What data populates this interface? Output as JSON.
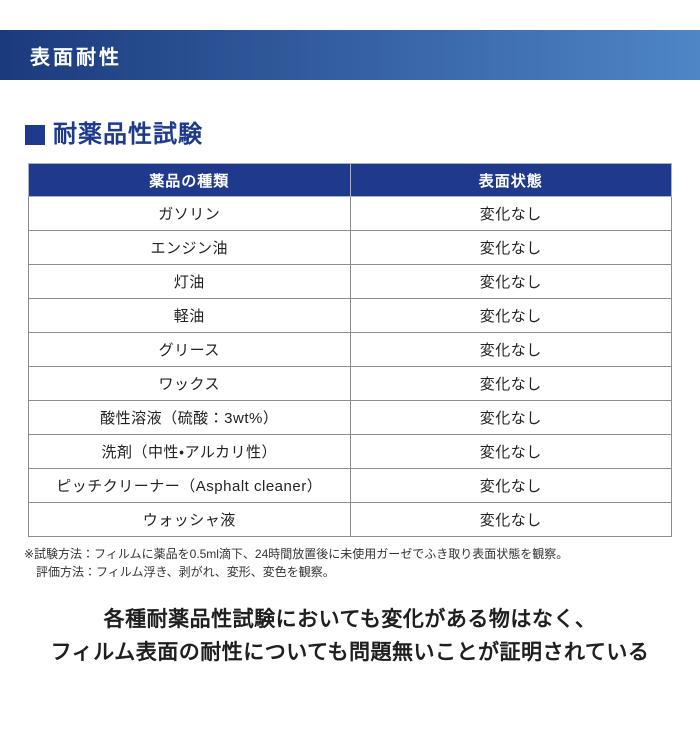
{
  "banner": {
    "title": "表面耐性"
  },
  "section": {
    "title": "耐薬品性試験"
  },
  "table": {
    "headers": {
      "chemical": "薬品の種類",
      "surface": "表面状態"
    },
    "rows": [
      {
        "chemical": "ガソリン",
        "state": "変化なし"
      },
      {
        "chemical": "エンジン油",
        "state": "変化なし"
      },
      {
        "chemical": "灯油",
        "state": "変化なし"
      },
      {
        "chemical": "軽油",
        "state": "変化なし"
      },
      {
        "chemical": "グリース",
        "state": "変化なし"
      },
      {
        "chemical": "ワックス",
        "state": "変化なし"
      },
      {
        "chemical": "酸性溶液（硫酸：3wt%）",
        "state": "変化なし"
      },
      {
        "chemical": "洗剤（中性・アルカリ性）",
        "state": "変化なし"
      },
      {
        "chemical": "ピッチクリーナー（Asphalt cleaner）",
        "state": "変化なし"
      },
      {
        "chemical": "ウォッシャ液",
        "state": "変化なし"
      }
    ]
  },
  "footnote": {
    "line1": "※試験方法：フィルムに薬品を0.5ml滴下、24時間放置後に未使用ガーゼでふき取り表面状態を観察。",
    "line2": "評価方法：フィルム浮き、剥がれ、変形、変色を観察。"
  },
  "conclusion": {
    "line1": "各種耐薬品性試験においても変化がある物はなく、",
    "line2": "フィルム表面の耐性についても問題無いことが証明されている"
  },
  "colors": {
    "banner_gradient_start": "#1b3a7d",
    "banner_gradient_end": "#4e86c6",
    "table_header_bg": "#1f3a8c",
    "heading_color": "#1e3a8c",
    "border_color": "#8c8c8c"
  }
}
